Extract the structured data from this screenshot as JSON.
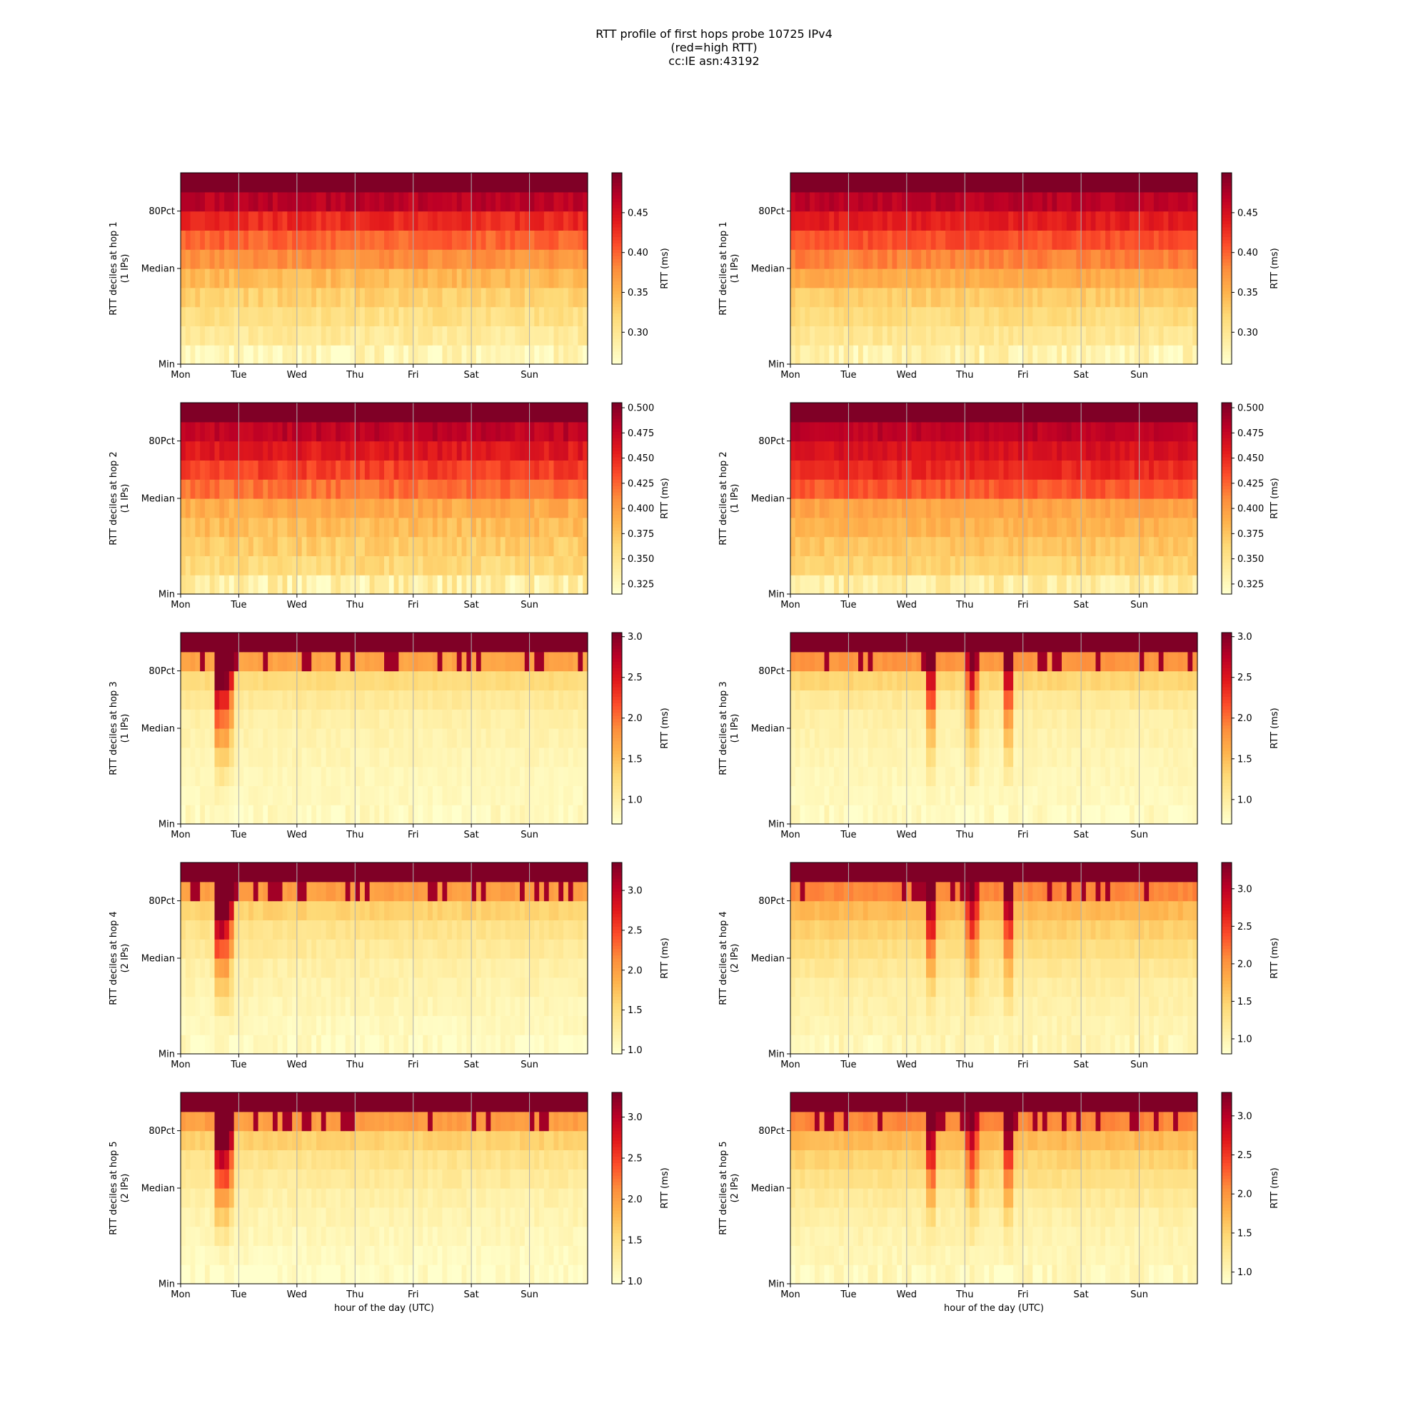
{
  "figure": {
    "title_lines": [
      "RTT profile of first hops probe 10725 IPv4",
      "(red=high RTT)",
      "cc:IE asn:43192"
    ]
  },
  "colors": {
    "colormap": [
      "#ffffcc",
      "#ffeda0",
      "#fed976",
      "#feb24c",
      "#fd8d3c",
      "#fc4e2a",
      "#e31a1c",
      "#bd0026",
      "#800026"
    ],
    "grid": "#b0b0b0"
  },
  "chart_data": [
    {
      "type": "heatmap",
      "panel": "hop1-left",
      "xlabel": "",
      "ylabel": "RTT deciles at hop 1",
      "ysublabel": "(1 IPs)",
      "xticks": [
        "Mon",
        "Tue",
        "Wed",
        "Thu",
        "Fri",
        "Sat",
        "Sun"
      ],
      "yticks": [
        "Min",
        "Median",
        "80Pct"
      ],
      "colorbar": {
        "label": "RTT (ms)",
        "vmin": 0.26,
        "vmax": 0.5,
        "ticks": [
          0.3,
          0.35,
          0.4,
          0.45
        ]
      },
      "decile_values": [
        0.27,
        0.295,
        0.31,
        0.325,
        0.345,
        0.375,
        0.4,
        0.43,
        0.47,
        0.5
      ],
      "noise": 0.012,
      "events": []
    },
    {
      "type": "heatmap",
      "panel": "hop1-right",
      "xlabel": "",
      "ylabel": "RTT deciles at hop 1",
      "ysublabel": "(1 IPs)",
      "xticks": [
        "Mon",
        "Tue",
        "Wed",
        "Thu",
        "Fri",
        "Sat",
        "Sun"
      ],
      "yticks": [
        "Min",
        "Median",
        "80Pct"
      ],
      "colorbar": {
        "label": "RTT (ms)",
        "vmin": 0.26,
        "vmax": 0.5,
        "ticks": [
          0.3,
          0.35,
          0.4,
          0.45
        ]
      },
      "decile_values": [
        0.28,
        0.3,
        0.315,
        0.33,
        0.355,
        0.385,
        0.41,
        0.44,
        0.47,
        0.5
      ],
      "noise": 0.01,
      "events": []
    },
    {
      "type": "heatmap",
      "panel": "hop2-left",
      "xlabel": "",
      "ylabel": "RTT deciles at hop 2",
      "ysublabel": "(1 IPs)",
      "xticks": [
        "Mon",
        "Tue",
        "Wed",
        "Thu",
        "Fri",
        "Sat",
        "Sun"
      ],
      "yticks": [
        "Min",
        "Median",
        "80Pct"
      ],
      "colorbar": {
        "label": "RTT (ms)",
        "vmin": 0.315,
        "vmax": 0.505,
        "ticks": [
          0.325,
          0.35,
          0.375,
          0.4,
          0.425,
          0.45,
          0.475,
          0.5
        ]
      },
      "decile_values": [
        0.335,
        0.36,
        0.37,
        0.38,
        0.39,
        0.42,
        0.44,
        0.46,
        0.48,
        0.505
      ],
      "noise": 0.01,
      "events": []
    },
    {
      "type": "heatmap",
      "panel": "hop2-right",
      "xlabel": "",
      "ylabel": "RTT deciles at hop 2",
      "ysublabel": "(1 IPs)",
      "xticks": [
        "Mon",
        "Tue",
        "Wed",
        "Thu",
        "Fri",
        "Sat",
        "Sun"
      ],
      "yticks": [
        "Min",
        "Median",
        "80Pct"
      ],
      "colorbar": {
        "label": "RTT (ms)",
        "vmin": 0.315,
        "vmax": 0.505,
        "ticks": [
          0.325,
          0.35,
          0.375,
          0.4,
          0.425,
          0.45,
          0.475,
          0.5
        ]
      },
      "decile_values": [
        0.34,
        0.365,
        0.375,
        0.385,
        0.395,
        0.43,
        0.45,
        0.465,
        0.48,
        0.505
      ],
      "noise": 0.008,
      "events": []
    },
    {
      "type": "heatmap",
      "panel": "hop3-left",
      "xlabel": "",
      "ylabel": "RTT deciles at hop 3",
      "ysublabel": "(1 IPs)",
      "xticks": [
        "Mon",
        "Tue",
        "Wed",
        "Thu",
        "Fri",
        "Sat",
        "Sun"
      ],
      "yticks": [
        "Min",
        "Median",
        "80Pct"
      ],
      "colorbar": {
        "label": "RTT (ms)",
        "vmin": 0.7,
        "vmax": 3.05,
        "ticks": [
          1.0,
          1.5,
          2.0,
          2.5,
          3.0
        ]
      },
      "decile_values": [
        0.78,
        0.8,
        0.83,
        0.86,
        0.9,
        0.95,
        1.05,
        1.25,
        1.7,
        3.05
      ],
      "noise": 0.06,
      "events": [
        {
          "start": 0.08,
          "end": 0.125,
          "boost": 2.6,
          "peak_start": 0.085,
          "peak_end": 0.12
        }
      ]
    },
    {
      "type": "heatmap",
      "panel": "hop3-right",
      "xlabel": "",
      "ylabel": "RTT deciles at hop 3",
      "ysublabel": "(1 IPs)",
      "xticks": [
        "Mon",
        "Tue",
        "Wed",
        "Thu",
        "Fri",
        "Sat",
        "Sun"
      ],
      "yticks": [
        "Min",
        "Median",
        "80Pct"
      ],
      "colorbar": {
        "label": "RTT (ms)",
        "vmin": 0.7,
        "vmax": 3.05,
        "ticks": [
          1.0,
          1.5,
          2.0,
          2.5,
          3.0
        ]
      },
      "decile_values": [
        0.78,
        0.8,
        0.83,
        0.86,
        0.9,
        0.95,
        1.05,
        1.3,
        1.8,
        3.05
      ],
      "noise": 0.06,
      "events": [
        {
          "start": 0.33,
          "end": 0.36,
          "boost": 1.8,
          "peak_start": 0.335,
          "peak_end": 0.355
        },
        {
          "start": 0.43,
          "end": 0.46,
          "boost": 1.8,
          "peak_start": 0.435,
          "peak_end": 0.455
        },
        {
          "start": 0.52,
          "end": 0.55,
          "boost": 1.8,
          "peak_start": 0.525,
          "peak_end": 0.545
        }
      ]
    },
    {
      "type": "heatmap",
      "panel": "hop4-left",
      "xlabel": "",
      "ylabel": "RTT deciles at hop 4",
      "ysublabel": "(2 IPs)",
      "xticks": [
        "Mon",
        "Tue",
        "Wed",
        "Thu",
        "Fri",
        "Sat",
        "Sun"
      ],
      "yticks": [
        "Min",
        "Median",
        "80Pct"
      ],
      "colorbar": {
        "label": "RTT (ms)",
        "vmin": 0.95,
        "vmax": 3.35,
        "ticks": [
          1.0,
          1.5,
          2.0,
          2.5,
          3.0
        ]
      },
      "decile_values": [
        1.0,
        1.05,
        1.1,
        1.15,
        1.2,
        1.3,
        1.4,
        1.6,
        2.0,
        3.35
      ],
      "noise": 0.07,
      "events": [
        {
          "start": 0.08,
          "end": 0.125,
          "boost": 2.6,
          "peak_start": 0.085,
          "peak_end": 0.12
        }
      ]
    },
    {
      "type": "heatmap",
      "panel": "hop4-right",
      "xlabel": "",
      "ylabel": "RTT deciles at hop 4",
      "ysublabel": "(2 IPs)",
      "xticks": [
        "Mon",
        "Tue",
        "Wed",
        "Thu",
        "Fri",
        "Sat",
        "Sun"
      ],
      "yticks": [
        "Min",
        "Median",
        "80Pct"
      ],
      "colorbar": {
        "label": "RTT (ms)",
        "vmin": 0.8,
        "vmax": 3.35,
        "ticks": [
          1.0,
          1.5,
          2.0,
          2.5,
          3.0
        ]
      },
      "decile_values": [
        0.95,
        1.0,
        1.05,
        1.1,
        1.2,
        1.35,
        1.5,
        1.7,
        2.1,
        3.35
      ],
      "noise": 0.07,
      "events": [
        {
          "start": 0.33,
          "end": 0.36,
          "boost": 1.8,
          "peak_start": 0.335,
          "peak_end": 0.355
        },
        {
          "start": 0.43,
          "end": 0.46,
          "boost": 1.8,
          "peak_start": 0.435,
          "peak_end": 0.455
        },
        {
          "start": 0.52,
          "end": 0.55,
          "boost": 1.8,
          "peak_start": 0.525,
          "peak_end": 0.545
        }
      ]
    },
    {
      "type": "heatmap",
      "panel": "hop5-left",
      "xlabel": "hour of the day (UTC)",
      "ylabel": "RTT deciles at hop 5",
      "ysublabel": "(2 IPs)",
      "xticks": [
        "Mon",
        "Tue",
        "Wed",
        "Thu",
        "Fri",
        "Sat",
        "Sun"
      ],
      "yticks": [
        "Min",
        "Median",
        "80Pct"
      ],
      "colorbar": {
        "label": "RTT (ms)",
        "vmin": 0.97,
        "vmax": 3.3,
        "ticks": [
          1.0,
          1.5,
          2.0,
          2.5,
          3.0
        ]
      },
      "decile_values": [
        1.0,
        1.05,
        1.1,
        1.15,
        1.2,
        1.3,
        1.4,
        1.6,
        2.0,
        3.3
      ],
      "noise": 0.07,
      "events": [
        {
          "start": 0.08,
          "end": 0.125,
          "boost": 2.6,
          "peak_start": 0.085,
          "peak_end": 0.12
        }
      ]
    },
    {
      "type": "heatmap",
      "panel": "hop5-right",
      "xlabel": "hour of the day (UTC)",
      "ylabel": "RTT deciles at hop 5",
      "ysublabel": "(2 IPs)",
      "xticks": [
        "Mon",
        "Tue",
        "Wed",
        "Thu",
        "Fri",
        "Sat",
        "Sun"
      ],
      "yticks": [
        "Min",
        "Median",
        "80Pct"
      ],
      "colorbar": {
        "label": "RTT (ms)",
        "vmin": 0.85,
        "vmax": 3.3,
        "ticks": [
          1.0,
          1.5,
          2.0,
          2.5,
          3.0
        ]
      },
      "decile_values": [
        0.95,
        1.0,
        1.05,
        1.1,
        1.2,
        1.35,
        1.5,
        1.7,
        2.1,
        3.3
      ],
      "noise": 0.07,
      "events": [
        {
          "start": 0.33,
          "end": 0.36,
          "boost": 1.8,
          "peak_start": 0.335,
          "peak_end": 0.355
        },
        {
          "start": 0.43,
          "end": 0.46,
          "boost": 1.8,
          "peak_start": 0.435,
          "peak_end": 0.455
        },
        {
          "start": 0.52,
          "end": 0.55,
          "boost": 1.8,
          "peak_start": 0.525,
          "peak_end": 0.545
        }
      ]
    }
  ]
}
